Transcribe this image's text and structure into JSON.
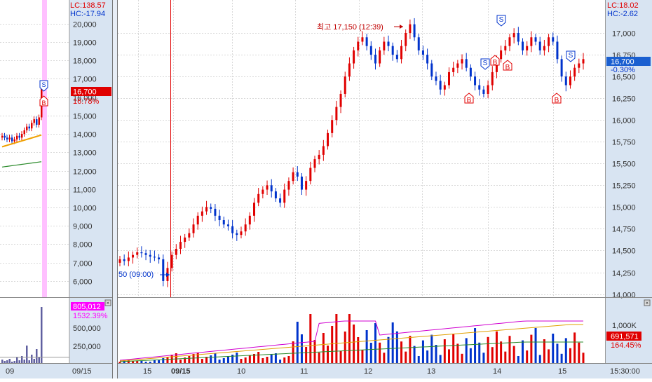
{
  "colors": {
    "up": "#e00000",
    "down": "#0033cc",
    "axis_bg": "#d8e4f2",
    "grid": "#d9d9d9",
    "ma_orange": "#f0a000",
    "ma_green": "#2a8a2a",
    "ma_magenta": "#d000d0",
    "marker_pink": "#ffc0ff",
    "price_badge": "#e00000",
    "vol_badge_left": "#ff00ff"
  },
  "left_panel": {
    "lc_label": "LC:138.57",
    "hc_label": "HC:-17.94",
    "price_ticks": [
      "20,000",
      "19,000",
      "18,000",
      "17,000",
      "16,000",
      "15,000",
      "14,000",
      "13,000",
      "12,000",
      "11,000",
      "10,000",
      "9,000",
      "8,000",
      "7,000",
      "6,000"
    ],
    "price_badge": "16,700",
    "change_pct": "16.78%",
    "volume_badge": "805,012",
    "volume_pct": "1532.39%",
    "volume_ticks": [
      "500,000",
      "250,000"
    ],
    "date_labels": [
      "09",
      "09/15"
    ],
    "marker_s": "S",
    "marker_b": "B"
  },
  "main_panel": {
    "lc_label": "LC:18.02",
    "hc_label": "HC:-2.62",
    "price_ticks": [
      "17,000",
      "16,750",
      "16,500",
      "16,250",
      "16,000",
      "15,750",
      "15,500",
      "15,250",
      "15,000",
      "14,750",
      "14,500",
      "14,250",
      "14,000"
    ],
    "price_badge": "16,700",
    "change_pct": "-0.30%",
    "volume_tick": "1,000K",
    "volume_badge": "691,571",
    "volume_pct": "164.45%",
    "high_annotation": "최고 17,150 (12:39)",
    "low_annotation": "50 (09:00)",
    "time_labels": [
      "15",
      "09/15",
      "10",
      "11",
      "12",
      "13",
      "14",
      "15"
    ],
    "clock_label": "15:30:00",
    "marker_s": "S",
    "marker_b": "B"
  },
  "chart_data": [
    {
      "type": "candlestick",
      "title": "",
      "description_units": "KRW",
      "y_axis_ticks": [
        20000,
        19000,
        18000,
        17000,
        16000,
        15000,
        14000,
        13000,
        12000,
        11000,
        10000,
        9000,
        8000,
        7000,
        6000
      ],
      "ylim": [
        5500,
        20600
      ],
      "last_price": 16700,
      "last_change_pct": 16.78,
      "series": [
        {
          "name": "MA short",
          "color": "orange"
        },
        {
          "name": "MA long",
          "color": "green"
        }
      ],
      "close_approx": [
        13900,
        13800,
        13700,
        13800,
        13600,
        13700,
        13900,
        13800,
        14000,
        14200,
        14400,
        14300,
        14600,
        14800,
        14500,
        14900,
        16700
      ]
    },
    {
      "type": "candlestick",
      "title": "",
      "ylim": [
        13900,
        17250
      ],
      "y_axis_ticks": [
        17000,
        16750,
        16500,
        16250,
        16000,
        15750,
        15500,
        15250,
        15000,
        14750,
        14500,
        14250,
        14000
      ],
      "x_labels": [
        "15",
        "09/15",
        "10",
        "11",
        "12",
        "13",
        "14",
        "15"
      ],
      "high": {
        "value": 17150,
        "time": "12:39"
      },
      "low_annotation": "50 (09:00)",
      "last_price": 16700,
      "last_change_pct": -0.3,
      "volume": {
        "last": 691571,
        "pct": 164.45,
        "ticks": [
          "1,000K"
        ]
      },
      "buy_sell_markers": [
        "S",
        "B",
        "S",
        "B",
        "B",
        "S",
        "B"
      ],
      "close_approx": [
        14400,
        14380,
        14420,
        14450,
        14480,
        14470,
        14450,
        14430,
        14420,
        14400,
        14150,
        14300,
        14450,
        14520,
        14600,
        14650,
        14700,
        14800,
        14900,
        14950,
        15000,
        14980,
        14900,
        14850,
        14800,
        14780,
        14700,
        14680,
        14720,
        14800,
        14900,
        15050,
        15150,
        15200,
        15250,
        15180,
        15100,
        15050,
        15200,
        15300,
        15400,
        15350,
        15200,
        15300,
        15450,
        15550,
        15600,
        15700,
        15850,
        16000,
        16150,
        16300,
        16500,
        16650,
        16800,
        16900,
        16950,
        16850,
        16750,
        16650,
        16800,
        16900,
        16850,
        16750,
        16700,
        16850,
        17000,
        17100,
        16950,
        16800,
        16750,
        16650,
        16500,
        16450,
        16350,
        16400,
        16550,
        16600,
        16650,
        16700,
        16600,
        16500,
        16400,
        16350,
        16300,
        16400,
        16550,
        16700,
        16800,
        16850,
        16950,
        17000,
        16900,
        16800,
        16850,
        16950,
        16900,
        16800,
        16850,
        16950,
        16900,
        16700,
        16500,
        16400,
        16500,
        16600,
        16650,
        16700
      ]
    }
  ]
}
